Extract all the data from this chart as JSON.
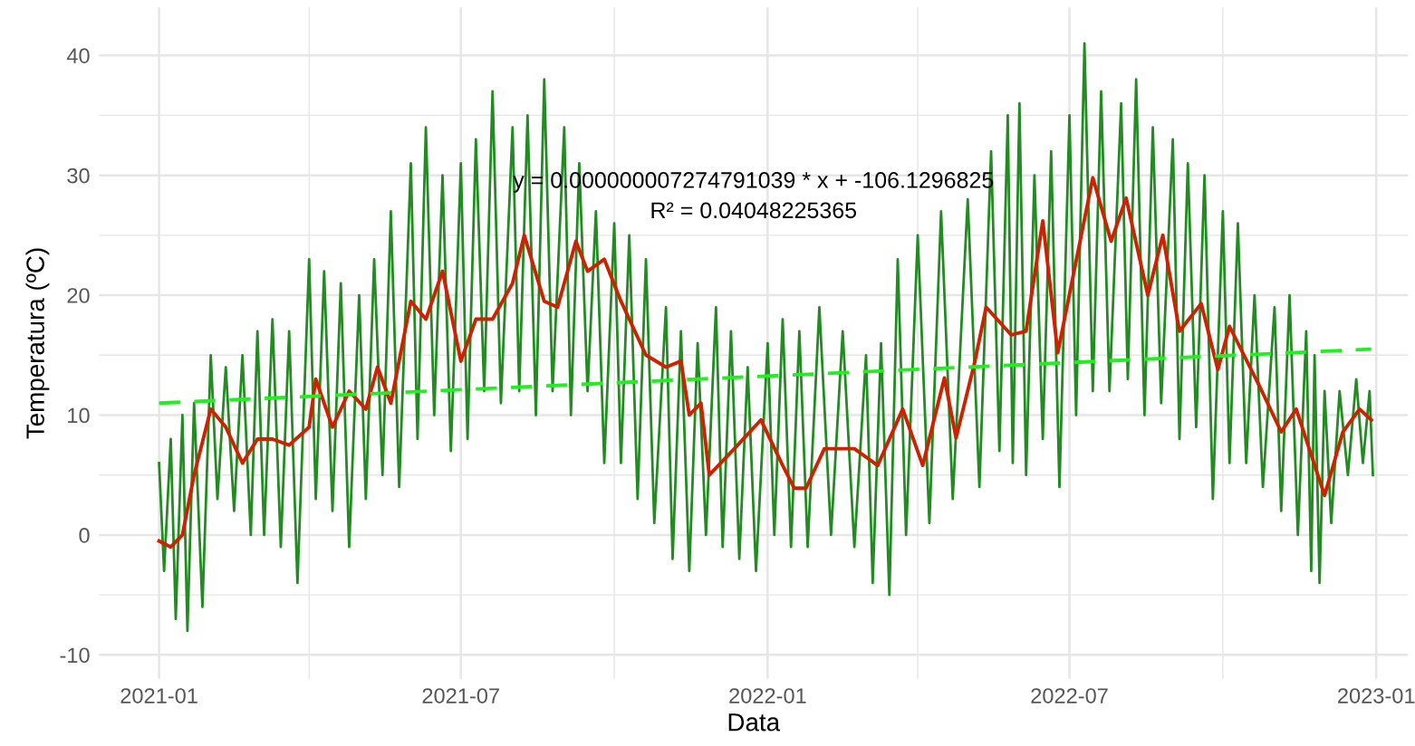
{
  "chart_data": {
    "type": "line",
    "xlabel": "Data",
    "ylabel": "Temperatura (ºC)",
    "annotations": [
      "y = 0.000000007274791039 * x + -106.1296825",
      "R² = 0.04048225365"
    ],
    "xlim": [
      "2020-11-26",
      "2023-01-20"
    ],
    "ylim": [
      -12,
      44
    ],
    "xticks": [
      {
        "value": "2021-01-01",
        "label": "2021-01"
      },
      {
        "value": "2021-04-01",
        "label": null
      },
      {
        "value": "2021-07-01",
        "label": "2021-07"
      },
      {
        "value": "2021-10-01",
        "label": null
      },
      {
        "value": "2022-01-01",
        "label": "2022-01"
      },
      {
        "value": "2022-04-01",
        "label": null
      },
      {
        "value": "2022-07-01",
        "label": "2022-07"
      },
      {
        "value": "2022-10-01",
        "label": null
      },
      {
        "value": "2023-01-01",
        "label": "2023-01"
      }
    ],
    "yticks": [
      -10,
      {
        "value": -5,
        "label": null
      },
      0,
      {
        "value": 5,
        "label": null
      },
      10,
      {
        "value": 15,
        "label": null
      },
      20,
      {
        "value": 25,
        "label": null
      },
      30,
      {
        "value": 35,
        "label": null
      },
      40
    ],
    "grid": true,
    "legend": false,
    "marker": "none",
    "series": [
      {
        "color": "#228b22",
        "line_style": "solid",
        "x": [
          "2021-01-01",
          "2021-01-04",
          "2021-01-08",
          "2021-01-11",
          "2021-01-15",
          "2021-01-18",
          "2021-01-22",
          "2021-01-27",
          "2021-02-01",
          "2021-02-05",
          "2021-02-10",
          "2021-02-15",
          "2021-02-20",
          "2021-02-25",
          "2021-03-01",
          "2021-03-05",
          "2021-03-10",
          "2021-03-15",
          "2021-03-20",
          "2021-03-25",
          "2021-04-01",
          "2021-04-05",
          "2021-04-10",
          "2021-04-15",
          "2021-04-20",
          "2021-04-25",
          "2021-05-01",
          "2021-05-05",
          "2021-05-10",
          "2021-05-15",
          "2021-05-20",
          "2021-05-25",
          "2021-06-01",
          "2021-06-05",
          "2021-06-10",
          "2021-06-15",
          "2021-06-20",
          "2021-06-25",
          "2021-07-01",
          "2021-07-05",
          "2021-07-10",
          "2021-07-15",
          "2021-07-20",
          "2021-07-25",
          "2021-08-01",
          "2021-08-05",
          "2021-08-10",
          "2021-08-15",
          "2021-08-20",
          "2021-08-25",
          "2021-09-01",
          "2021-09-05",
          "2021-09-10",
          "2021-09-15",
          "2021-09-20",
          "2021-09-25",
          "2021-10-01",
          "2021-10-05",
          "2021-10-10",
          "2021-10-15",
          "2021-10-20",
          "2021-10-25",
          "2021-11-01",
          "2021-11-05",
          "2021-11-10",
          "2021-11-15",
          "2021-11-20",
          "2021-11-25",
          "2021-12-01",
          "2021-12-05",
          "2021-12-10",
          "2021-12-15",
          "2021-12-20",
          "2021-12-25",
          "2022-01-01",
          "2022-01-05",
          "2022-01-10",
          "2022-01-15",
          "2022-01-20",
          "2022-01-25",
          "2022-02-01",
          "2022-02-08",
          "2022-02-15",
          "2022-02-22",
          "2022-03-01",
          "2022-03-05",
          "2022-03-10",
          "2022-03-15",
          "2022-03-20",
          "2022-03-25",
          "2022-04-01",
          "2022-04-08",
          "2022-04-15",
          "2022-04-22",
          "2022-05-01",
          "2022-05-08",
          "2022-05-15",
          "2022-05-20",
          "2022-05-25",
          "2022-05-28",
          "2022-06-01",
          "2022-06-05",
          "2022-06-10",
          "2022-06-15",
          "2022-06-20",
          "2022-06-25",
          "2022-07-01",
          "2022-07-05",
          "2022-07-10",
          "2022-07-15",
          "2022-07-20",
          "2022-07-25",
          "2022-08-01",
          "2022-08-05",
          "2022-08-10",
          "2022-08-15",
          "2022-08-20",
          "2022-08-25",
          "2022-09-01",
          "2022-09-05",
          "2022-09-10",
          "2022-09-15",
          "2022-09-20",
          "2022-09-25",
          "2022-10-01",
          "2022-10-05",
          "2022-10-10",
          "2022-10-15",
          "2022-10-20",
          "2022-10-25",
          "2022-11-01",
          "2022-11-05",
          "2022-11-10",
          "2022-11-15",
          "2022-11-20",
          "2022-11-23",
          "2022-11-25",
          "2022-11-28",
          "2022-12-01",
          "2022-12-05",
          "2022-12-10",
          "2022-12-15",
          "2022-12-20",
          "2022-12-24",
          "2022-12-28",
          "2022-12-30"
        ],
        "values": [
          6,
          -3,
          8,
          -7,
          10,
          -8,
          11,
          -6,
          15,
          3,
          14,
          2,
          15,
          0,
          17,
          0,
          18,
          -1,
          17,
          -4,
          23,
          3,
          22,
          2,
          21,
          -1,
          20,
          3,
          23,
          5,
          27,
          4,
          31,
          8,
          34,
          10,
          30,
          7,
          31,
          8,
          33,
          12,
          37,
          11,
          34,
          12,
          35,
          10,
          38,
          12,
          34,
          10,
          31,
          12,
          27,
          6,
          26,
          6,
          25,
          3,
          23,
          1,
          19,
          -2,
          17,
          -3,
          16,
          0,
          19,
          -1,
          17,
          -2,
          14,
          -3,
          16,
          0,
          18,
          -1,
          17,
          -1,
          19,
          0,
          17,
          -1,
          15,
          -4,
          16,
          -5,
          23,
          0,
          25,
          1,
          27,
          3,
          28,
          4,
          32,
          7,
          35,
          6,
          36,
          5,
          30,
          8,
          32,
          4,
          35,
          10,
          41,
          12,
          37,
          12,
          36,
          13,
          38,
          10,
          34,
          11,
          33,
          8,
          31,
          9,
          30,
          3,
          27,
          6,
          26,
          6,
          20,
          4,
          19,
          2,
          20,
          0,
          17,
          -3,
          15,
          -4,
          12,
          1,
          12,
          5,
          13,
          6,
          12,
          5
        ]
      },
      {
        "color": "#cc2200",
        "line_style": "solid",
        "x": [
          "2021-01-01",
          "2021-01-08",
          "2021-01-15",
          "2021-01-22",
          "2021-02-01",
          "2021-02-10",
          "2021-02-20",
          "2021-03-01",
          "2021-03-10",
          "2021-03-20",
          "2021-04-01",
          "2021-04-05",
          "2021-04-15",
          "2021-04-25",
          "2021-05-05",
          "2021-05-12",
          "2021-05-20",
          "2021-06-01",
          "2021-06-10",
          "2021-06-20",
          "2021-07-01",
          "2021-07-10",
          "2021-07-20",
          "2021-08-01",
          "2021-08-08",
          "2021-08-20",
          "2021-08-28",
          "2021-09-08",
          "2021-09-15",
          "2021-09-25",
          "2021-10-05",
          "2021-10-20",
          "2021-11-01",
          "2021-11-10",
          "2021-11-15",
          "2021-11-22",
          "2021-11-27",
          "2021-12-12",
          "2021-12-28",
          "2022-01-10",
          "2022-01-17",
          "2022-01-24",
          "2022-02-04",
          "2022-02-22",
          "2022-03-08",
          "2022-03-23",
          "2022-04-04",
          "2022-04-17",
          "2022-04-24",
          "2022-05-05",
          "2022-05-12",
          "2022-05-27",
          "2022-06-05",
          "2022-06-15",
          "2022-06-24",
          "2022-07-15",
          "2022-07-26",
          "2022-08-04",
          "2022-08-17",
          "2022-08-26",
          "2022-09-05",
          "2022-09-18",
          "2022-09-28",
          "2022-10-05",
          "2022-10-23",
          "2022-11-05",
          "2022-11-14",
          "2022-12-01",
          "2022-12-12",
          "2022-12-22",
          "2022-12-29"
        ],
        "values": [
          -0.5,
          -1,
          0,
          5,
          10.5,
          9,
          6,
          8,
          8,
          7.5,
          9,
          13,
          9,
          12,
          10.5,
          14,
          11,
          19.5,
          18,
          22,
          14.5,
          18,
          18,
          21,
          25,
          19.5,
          19,
          24.5,
          22,
          23,
          19.5,
          15,
          14,
          14.5,
          10,
          11,
          5,
          7.2,
          9.6,
          5.8,
          3.9,
          3.9,
          7.2,
          7.2,
          5.8,
          10.5,
          5.8,
          13.1,
          8.1,
          14.3,
          19,
          16.7,
          17,
          26.2,
          15.2,
          29.8,
          24.5,
          28.1,
          20,
          25,
          17,
          19.3,
          13.8,
          17.4,
          12.4,
          8.6,
          10.5,
          3.3,
          8.6,
          10.5,
          9.6
        ]
      },
      {
        "color": "#22ee22",
        "line_style": "dashed",
        "x": [
          "2021-01-01",
          "2022-12-29"
        ],
        "values": [
          11,
          15.5
        ]
      }
    ]
  }
}
